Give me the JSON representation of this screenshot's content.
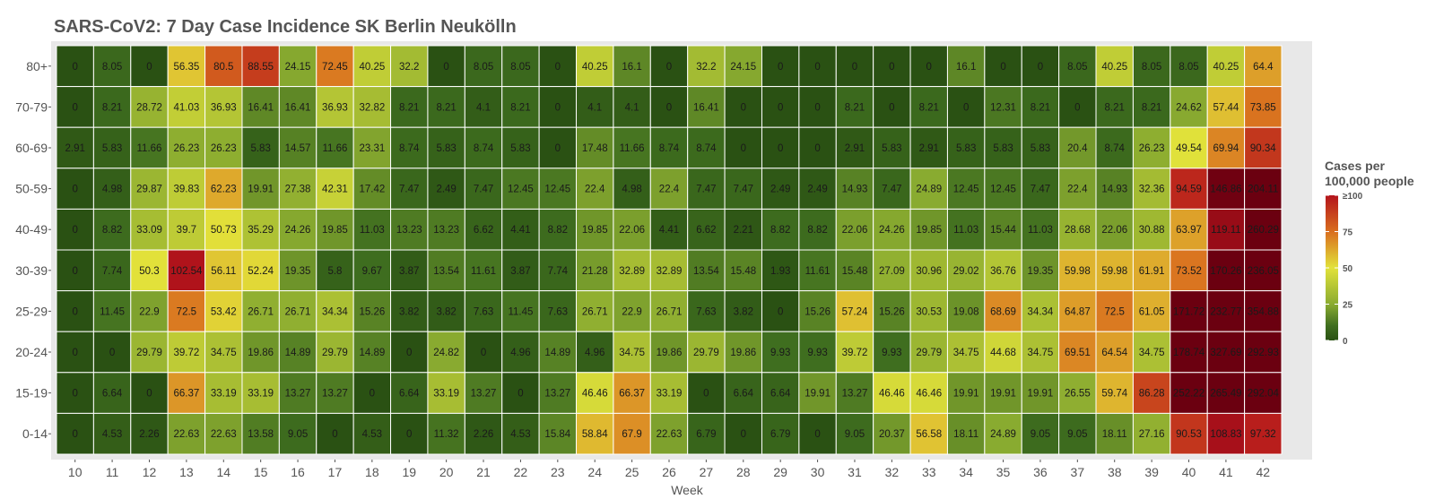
{
  "chart_data": {
    "type": "heatmap",
    "title": "SARS-CoV2: 7 Day Case Incidence SK Berlin Neukölln",
    "xlabel": "Week",
    "ylabel": "",
    "x": [
      "10",
      "11",
      "12",
      "13",
      "14",
      "15",
      "16",
      "17",
      "18",
      "19",
      "20",
      "21",
      "22",
      "23",
      "24",
      "25",
      "26",
      "27",
      "28",
      "29",
      "30",
      "31",
      "32",
      "33",
      "34",
      "35",
      "36",
      "37",
      "38",
      "39",
      "40",
      "41",
      "42"
    ],
    "y": [
      "80+",
      "70-79",
      "60-69",
      "50-59",
      "40-49",
      "30-39",
      "25-29",
      "20-24",
      "15-19",
      "0-14"
    ],
    "values": [
      [
        0,
        8.05,
        0,
        56.35,
        80.5,
        88.55,
        24.15,
        72.45,
        40.25,
        32.2,
        0,
        8.05,
        8.05,
        0,
        40.25,
        16.1,
        0,
        32.2,
        24.15,
        0,
        0,
        0,
        0,
        0,
        16.1,
        0,
        0,
        8.05,
        40.25,
        8.05,
        8.05,
        40.25,
        64.4
      ],
      [
        0,
        8.21,
        28.72,
        41.03,
        36.93,
        16.41,
        16.41,
        36.93,
        32.82,
        8.21,
        8.21,
        4.1,
        8.21,
        0,
        4.1,
        4.1,
        0,
        16.41,
        0,
        0,
        0,
        8.21,
        0,
        8.21,
        0,
        12.31,
        8.21,
        0,
        8.21,
        8.21,
        24.62,
        57.44,
        73.85
      ],
      [
        2.91,
        5.83,
        11.66,
        26.23,
        26.23,
        5.83,
        14.57,
        11.66,
        23.31,
        8.74,
        5.83,
        8.74,
        5.83,
        0,
        17.48,
        11.66,
        8.74,
        8.74,
        0,
        0,
        0,
        2.91,
        5.83,
        2.91,
        5.83,
        5.83,
        5.83,
        20.4,
        8.74,
        26.23,
        49.54,
        69.94,
        90.34
      ],
      [
        0,
        4.98,
        29.87,
        39.83,
        62.23,
        19.91,
        27.38,
        42.31,
        17.42,
        7.47,
        2.49,
        7.47,
        12.45,
        12.45,
        22.4,
        4.98,
        22.4,
        7.47,
        7.47,
        2.49,
        2.49,
        14.93,
        7.47,
        24.89,
        12.45,
        12.45,
        7.47,
        22.4,
        14.93,
        32.36,
        94.59,
        146.86,
        204.11
      ],
      [
        0,
        8.82,
        33.09,
        39.7,
        50.73,
        35.29,
        24.26,
        19.85,
        11.03,
        13.23,
        13.23,
        6.62,
        4.41,
        8.82,
        19.85,
        22.06,
        4.41,
        6.62,
        2.21,
        8.82,
        8.82,
        22.06,
        24.26,
        19.85,
        11.03,
        15.44,
        11.03,
        28.68,
        22.06,
        30.88,
        63.97,
        119.11,
        260.29
      ],
      [
        0,
        7.74,
        50.3,
        102.54,
        56.11,
        52.24,
        19.35,
        5.8,
        9.67,
        3.87,
        13.54,
        11.61,
        3.87,
        7.74,
        21.28,
        32.89,
        32.89,
        13.54,
        15.48,
        1.93,
        11.61,
        15.48,
        27.09,
        30.96,
        29.02,
        36.76,
        19.35,
        59.98,
        59.98,
        61.91,
        73.52,
        170.26,
        236.05
      ],
      [
        0,
        11.45,
        22.9,
        72.5,
        53.42,
        26.71,
        26.71,
        34.34,
        15.26,
        3.82,
        3.82,
        7.63,
        11.45,
        7.63,
        26.71,
        22.9,
        26.71,
        7.63,
        3.82,
        0,
        15.26,
        57.24,
        15.26,
        30.53,
        19.08,
        68.69,
        34.34,
        64.87,
        72.5,
        61.05,
        171.72,
        232.77,
        354.88
      ],
      [
        0,
        0,
        29.79,
        39.72,
        34.75,
        19.86,
        14.89,
        29.79,
        14.89,
        0,
        24.82,
        0,
        4.96,
        14.89,
        4.96,
        34.75,
        19.86,
        29.79,
        19.86,
        9.93,
        9.93,
        39.72,
        9.93,
        29.79,
        34.75,
        44.68,
        34.75,
        69.51,
        64.54,
        34.75,
        178.74,
        327.69,
        292.93
      ],
      [
        0,
        6.64,
        0,
        66.37,
        33.19,
        33.19,
        13.27,
        13.27,
        0,
        6.64,
        33.19,
        13.27,
        0,
        13.27,
        46.46,
        66.37,
        33.19,
        0,
        6.64,
        6.64,
        19.91,
        13.27,
        46.46,
        46.46,
        19.91,
        19.91,
        19.91,
        26.55,
        59.74,
        86.28,
        252.22,
        265.49,
        292.04
      ],
      [
        0,
        4.53,
        2.26,
        22.63,
        22.63,
        13.58,
        9.05,
        0,
        4.53,
        0,
        11.32,
        2.26,
        4.53,
        15.84,
        58.84,
        67.9,
        22.63,
        6.79,
        0,
        6.79,
        0,
        9.05,
        20.37,
        56.58,
        18.11,
        24.89,
        9.05,
        9.05,
        18.11,
        27.16,
        90.53,
        108.83,
        97.32
      ]
    ],
    "legend": {
      "title_lines": [
        "Cases per",
        "100,000 people"
      ],
      "ticks": [
        "0",
        "25",
        "50",
        "75",
        "≥100"
      ],
      "tick_values": [
        0,
        25,
        50,
        75,
        100
      ],
      "placement": "right"
    },
    "color_scale": {
      "domain": [
        0,
        10,
        25,
        50,
        75,
        100,
        150
      ],
      "colors": [
        "#2a5113",
        "#3f6e1f",
        "#8aab30",
        "#e2e23a",
        "#d96e1e",
        "#b4141c",
        "#6b0010"
      ]
    },
    "panel_background": "#e8e8e8"
  }
}
